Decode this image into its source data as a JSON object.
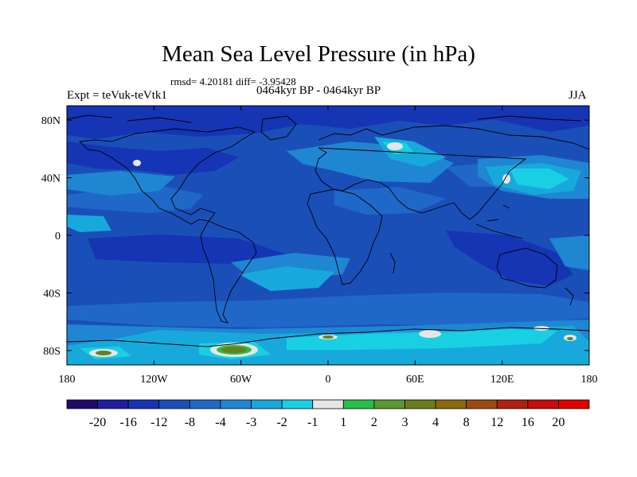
{
  "title": "Mean Sea Level Pressure (in hPa)",
  "stats": "rmsd= 4.20181 diff= -3.95428",
  "experiment": "Expt = teVuk-teVtk1",
  "period": "0464kyr BP - 0464kyr BP",
  "season": "JJA",
  "axes": {
    "x_ticks": [
      {
        "lon": -180,
        "label": "180"
      },
      {
        "lon": -120,
        "label": "120W"
      },
      {
        "lon": -60,
        "label": "60W"
      },
      {
        "lon": 0,
        "label": "0"
      },
      {
        "lon": 60,
        "label": "60E"
      },
      {
        "lon": 120,
        "label": "120E"
      },
      {
        "lon": 180,
        "label": "180"
      }
    ],
    "y_ticks": [
      {
        "lat": 80,
        "label": "80N"
      },
      {
        "lat": 40,
        "label": "40N"
      },
      {
        "lat": 0,
        "label": "0"
      },
      {
        "lat": -40,
        "label": "40S"
      },
      {
        "lat": -80,
        "label": "80S"
      }
    ],
    "lon_range": [
      -180,
      180
    ],
    "lat_range": [
      -90,
      90
    ]
  },
  "colorbar": {
    "colors": [
      "#200a6a",
      "#1e1ea0",
      "#1535b4",
      "#1b4fb8",
      "#2068c8",
      "#1f86d2",
      "#18a9dc",
      "#19d0e2",
      "#e6e6e6",
      "#27c046",
      "#5a9832",
      "#6b7e1e",
      "#8a6a10",
      "#9c4a10",
      "#b02010",
      "#c80c0c",
      "#e00000"
    ],
    "labels": [
      "-20",
      "-16",
      "-12",
      "-8",
      "-4",
      "-3",
      "-2",
      "-1",
      "1",
      "2",
      "3",
      "4",
      "8",
      "12",
      "16",
      "20"
    ]
  },
  "colors": {
    "background": "#1b4fb8",
    "moderate": "#2068c8",
    "weak": "#1f86d2",
    "weaker": "#18a9dc",
    "faint": "#19d0e2",
    "strong": "#1535b4",
    "neutral": "#e6e6e6",
    "positive_low": "#27c046",
    "positive_mid": "#6b7e1e",
    "coast": "#000000"
  }
}
